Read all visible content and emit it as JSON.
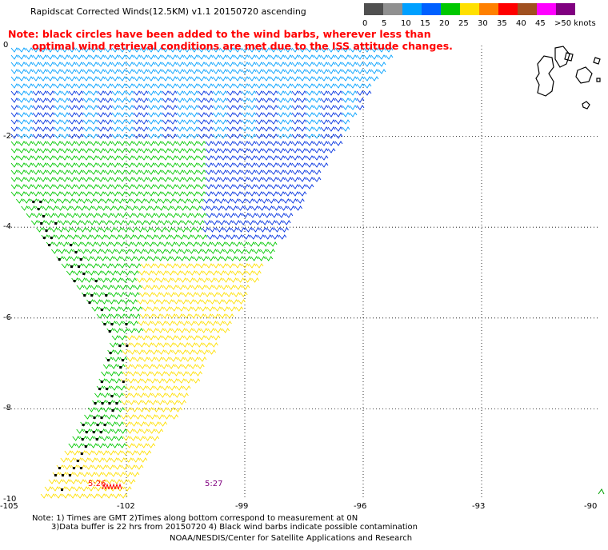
{
  "title": "Rapidscat Corrected Winds(12.5KM) v1.1 20150720 ascending",
  "note_line1": "Note: black circles have been added to the wind barbs, wherever less than",
  "note_line2": "optimal wind retrieval conditions are met due to the ISS attitude changes.",
  "legend": {
    "labels": [
      "0",
      "5",
      "10",
      "15",
      "20",
      "25",
      "30",
      "35",
      "40",
      "45",
      ">50 knots"
    ],
    "colors": [
      "#505050",
      "#909090",
      "#00a0ff",
      "#0060ff",
      "#00c800",
      "#ffe000",
      "#ff8000",
      "#ff0000",
      "#a05020",
      "#ff00ff",
      "#800080"
    ]
  },
  "map": {
    "lat_labels": [
      "0",
      "-2",
      "-4",
      "-6",
      "-8",
      "-10"
    ],
    "lon_labels": [
      "-105",
      "-102",
      "-99",
      "-96",
      "-93",
      "-90"
    ],
    "lon_range": [
      -105,
      -90
    ],
    "lat_range": [
      -10,
      0
    ],
    "times": [
      "5:26",
      "5:27"
    ]
  },
  "footer": {
    "line1": "Note: 1) Times are GMT 2)Times along bottom correspond to measurement at 0N",
    "line2": "3)Data buffer is 22 hrs from 20150720 4) Black wind barbs indicate possible contamination",
    "credit": "NOAA/NESDIS/Center for Satellite Applications and Research"
  }
}
